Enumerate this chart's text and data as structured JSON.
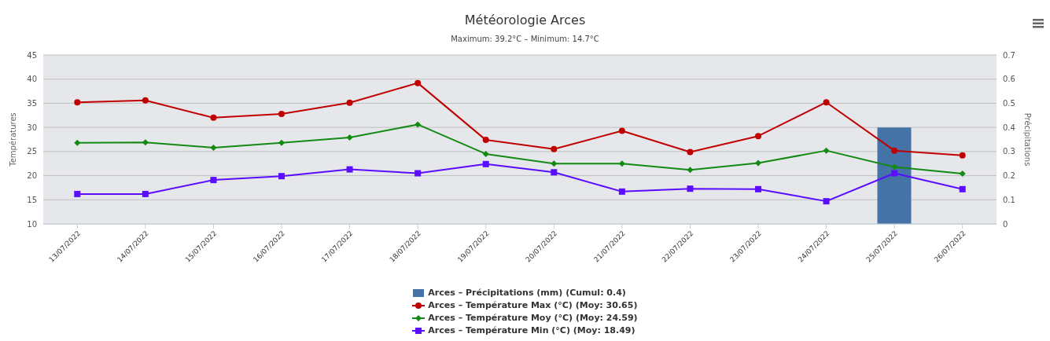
{
  "chart_data": {
    "type": "line",
    "title": "Météorologie Arces",
    "subtitle": "Maximum: 39.2°C – Minimum: 14.7°C",
    "ylabel": "Températures",
    "y2label": "Précipitations",
    "categories": [
      "13/07/2022",
      "14/07/2022",
      "15/07/2022",
      "16/07/2022",
      "17/07/2022",
      "18/07/2022",
      "19/07/2022",
      "20/07/2022",
      "21/07/2022",
      "22/07/2022",
      "23/07/2022",
      "24/07/2022",
      "25/07/2022",
      "26/07/2022"
    ],
    "ylim": [
      10,
      45
    ],
    "yticks": [
      10,
      15,
      20,
      25,
      30,
      35,
      40,
      45
    ],
    "y2lim": [
      0,
      0.7
    ],
    "y2ticks": [
      0,
      0.1,
      0.2,
      0.3,
      0.4,
      0.5,
      0.6,
      0.7
    ],
    "grid": "y",
    "legend": "bottom",
    "series": [
      {
        "name": "Arces – Précipitations (mm) (Cumul: 0.4)",
        "type": "bar",
        "axis": "y2",
        "color": "#4572a7",
        "values": [
          0,
          0,
          0,
          0,
          0,
          0,
          0,
          0,
          0,
          0,
          0,
          0,
          0.4,
          0
        ]
      },
      {
        "name": "Arces – Température Max (°C) (Moy: 30.65)",
        "marker": "circle",
        "color": "#c00000",
        "values": [
          35.2,
          35.6,
          32.0,
          32.8,
          35.1,
          39.2,
          27.4,
          25.5,
          29.3,
          24.9,
          28.2,
          35.2,
          25.2,
          24.2
        ]
      },
      {
        "name": "Arces – Température Moy (°C) (Moy: 24.59)",
        "marker": "diamond",
        "color": "#138a13",
        "values": [
          26.8,
          26.9,
          25.8,
          26.8,
          27.9,
          30.6,
          24.5,
          22.5,
          22.5,
          21.2,
          22.6,
          25.2,
          21.8,
          20.4
        ]
      },
      {
        "name": "Arces – Température Min (°C) (Moy: 18.49)",
        "marker": "square",
        "color": "#5a0dff",
        "values": [
          16.2,
          16.2,
          19.1,
          19.9,
          21.3,
          20.5,
          22.4,
          20.7,
          16.7,
          17.3,
          17.2,
          14.7,
          20.5,
          17.2
        ]
      }
    ]
  }
}
